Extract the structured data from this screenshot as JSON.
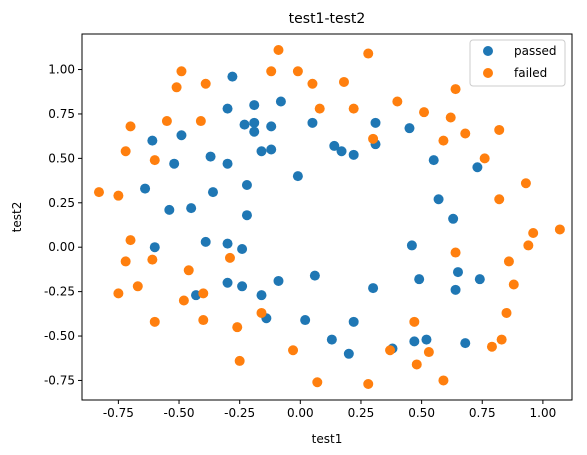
{
  "chart_data": {
    "type": "scatter",
    "title": "test1-test2",
    "xlabel": "test1",
    "ylabel": "test2",
    "xlim": [
      -0.9,
      1.12
    ],
    "ylim": [
      -0.86,
      1.2
    ],
    "xticks": [
      "-0.75",
      "-0.50",
      "-0.25",
      "0.00",
      "0.25",
      "0.50",
      "0.75",
      "1.00"
    ],
    "xtick_values": [
      -0.75,
      -0.5,
      -0.25,
      0.0,
      0.25,
      0.5,
      0.75,
      1.0
    ],
    "yticks": [
      "-0.75",
      "-0.50",
      "-0.25",
      "0.00",
      "0.25",
      "0.50",
      "0.75",
      "1.00"
    ],
    "ytick_values": [
      -0.75,
      -0.5,
      -0.25,
      0.0,
      0.25,
      0.5,
      0.75,
      1.0
    ],
    "grid": false,
    "legend_position": "top-right",
    "series": [
      {
        "name": "passed",
        "color": "#1f77b4",
        "points": [
          [
            -0.28,
            0.96
          ],
          [
            -0.49,
            0.63
          ],
          [
            -0.61,
            0.6
          ],
          [
            -0.64,
            0.33
          ],
          [
            -0.54,
            0.21
          ],
          [
            -0.6,
            0.0
          ],
          [
            -0.52,
            0.47
          ],
          [
            -0.37,
            0.51
          ],
          [
            -0.36,
            0.31
          ],
          [
            -0.3,
            0.78
          ],
          [
            -0.3,
            0.47
          ],
          [
            -0.23,
            0.69
          ],
          [
            -0.22,
            0.35
          ],
          [
            -0.22,
            0.18
          ],
          [
            -0.19,
            0.8
          ],
          [
            -0.19,
            0.7
          ],
          [
            -0.19,
            0.65
          ],
          [
            -0.16,
            0.54
          ],
          [
            -0.12,
            0.55
          ],
          [
            -0.12,
            0.68
          ],
          [
            -0.08,
            0.82
          ],
          [
            0.05,
            0.7
          ],
          [
            0.14,
            0.57
          ],
          [
            0.17,
            0.54
          ],
          [
            0.22,
            0.52
          ],
          [
            0.31,
            0.58
          ],
          [
            0.31,
            0.7
          ],
          [
            0.45,
            0.67
          ],
          [
            0.55,
            0.49
          ],
          [
            0.57,
            0.27
          ],
          [
            0.63,
            0.16
          ],
          [
            0.73,
            0.45
          ],
          [
            -0.01,
            0.4
          ],
          [
            -0.45,
            0.22
          ],
          [
            -0.39,
            0.03
          ],
          [
            -0.3,
            0.02
          ],
          [
            -0.24,
            -0.01
          ],
          [
            -0.24,
            -0.22
          ],
          [
            -0.3,
            -0.2
          ],
          [
            -0.43,
            -0.27
          ],
          [
            -0.16,
            -0.27
          ],
          [
            -0.09,
            -0.19
          ],
          [
            -0.14,
            -0.4
          ],
          [
            0.02,
            -0.41
          ],
          [
            0.06,
            -0.16
          ],
          [
            0.13,
            -0.52
          ],
          [
            0.2,
            -0.6
          ],
          [
            0.22,
            -0.42
          ],
          [
            0.3,
            -0.23
          ],
          [
            0.38,
            -0.57
          ],
          [
            0.47,
            -0.53
          ],
          [
            0.52,
            -0.52
          ],
          [
            0.46,
            0.01
          ],
          [
            0.49,
            -0.18
          ],
          [
            0.64,
            -0.24
          ],
          [
            0.65,
            -0.14
          ],
          [
            0.68,
            -0.54
          ],
          [
            0.74,
            -0.18
          ]
        ]
      },
      {
        "name": "failed",
        "color": "#ff7f0e",
        "points": [
          [
            -0.83,
            0.31
          ],
          [
            -0.75,
            0.29
          ],
          [
            -0.72,
            0.54
          ],
          [
            -0.7,
            0.68
          ],
          [
            -0.7,
            0.04
          ],
          [
            -0.72,
            -0.08
          ],
          [
            -0.75,
            -0.26
          ],
          [
            -0.67,
            -0.22
          ],
          [
            -0.61,
            -0.07
          ],
          [
            -0.6,
            -0.42
          ],
          [
            -0.6,
            0.49
          ],
          [
            -0.55,
            0.71
          ],
          [
            -0.51,
            0.9
          ],
          [
            -0.49,
            0.99
          ],
          [
            -0.48,
            -0.3
          ],
          [
            -0.46,
            -0.13
          ],
          [
            -0.41,
            0.71
          ],
          [
            -0.39,
            0.92
          ],
          [
            -0.4,
            -0.26
          ],
          [
            -0.4,
            -0.41
          ],
          [
            -0.29,
            -0.06
          ],
          [
            -0.26,
            -0.45
          ],
          [
            -0.25,
            -0.64
          ],
          [
            -0.16,
            -0.37
          ],
          [
            -0.12,
            0.99
          ],
          [
            -0.09,
            1.11
          ],
          [
            -0.03,
            -0.58
          ],
          [
            -0.01,
            0.99
          ],
          [
            0.05,
            0.92
          ],
          [
            0.08,
            0.78
          ],
          [
            0.07,
            -0.76
          ],
          [
            0.18,
            0.93
          ],
          [
            0.22,
            0.78
          ],
          [
            0.28,
            1.09
          ],
          [
            0.3,
            0.61
          ],
          [
            0.28,
            -0.77
          ],
          [
            0.37,
            -0.58
          ],
          [
            0.4,
            0.82
          ],
          [
            0.47,
            -0.42
          ],
          [
            0.48,
            -0.66
          ],
          [
            0.51,
            0.76
          ],
          [
            0.53,
            -0.59
          ],
          [
            0.59,
            0.6
          ],
          [
            0.62,
            0.73
          ],
          [
            0.64,
            0.89
          ],
          [
            0.64,
            -0.03
          ],
          [
            0.59,
            -0.75
          ],
          [
            0.68,
            0.64
          ],
          [
            0.76,
            0.5
          ],
          [
            0.79,
            -0.56
          ],
          [
            0.82,
            0.27
          ],
          [
            0.82,
            0.66
          ],
          [
            0.83,
            -0.52
          ],
          [
            0.85,
            -0.37
          ],
          [
            0.86,
            -0.08
          ],
          [
            0.88,
            -0.21
          ],
          [
            0.93,
            0.36
          ],
          [
            0.94,
            0.01
          ],
          [
            0.96,
            0.08
          ],
          [
            1.07,
            0.1
          ]
        ]
      }
    ]
  }
}
